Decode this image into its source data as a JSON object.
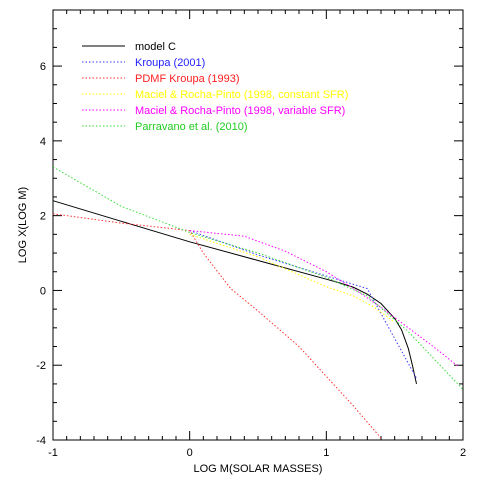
{
  "chart_data": {
    "type": "line",
    "xlabel": "LOG M(SOLAR MASSES)",
    "ylabel": "LOG X(LOG M)",
    "xlim": [
      -1,
      2
    ],
    "ylim": [
      -4,
      7.5
    ],
    "x_ticks": [
      -1,
      0,
      1,
      2
    ],
    "x_tick_labels": [
      "-1",
      "0",
      "1",
      "2"
    ],
    "y_ticks": [
      -4,
      -2,
      0,
      2,
      4,
      6
    ],
    "y_tick_labels": [
      "-4",
      "-2",
      "0",
      "2",
      "4",
      "6"
    ],
    "grid": false,
    "legend_position": "top-left",
    "series": [
      {
        "name": "model C",
        "color": "#000000",
        "dash": "solid",
        "label_color": "#000000",
        "x": [
          -1,
          -0.5,
          0,
          0.5,
          1,
          1.1,
          1.2,
          1.3,
          1.4,
          1.5,
          1.55,
          1.6,
          1.63,
          1.66
        ],
        "y": [
          2.4,
          1.85,
          1.3,
          0.8,
          0.3,
          0.2,
          0.08,
          -0.1,
          -0.35,
          -0.75,
          -1.05,
          -1.55,
          -2.0,
          -2.5
        ]
      },
      {
        "name": "Kroupa (2001)",
        "color": "#3a3aff",
        "dash": "dot",
        "label_color": "#2222ff",
        "x": [
          0,
          0.5,
          1.3,
          1.66
        ],
        "y": [
          1.6,
          0.95,
          0.05,
          -2.35
        ]
      },
      {
        "name": "PDMF Kroupa (1993)",
        "color": "#ff3030",
        "dash": "dot",
        "label_color": "#ff2020",
        "x": [
          -1,
          -0.5,
          0,
          0.1,
          0.3,
          0.5,
          0.8,
          1.0,
          1.2,
          1.4
        ],
        "y": [
          2.05,
          1.8,
          1.6,
          1.0,
          0.05,
          -0.55,
          -1.5,
          -2.3,
          -3.1,
          -3.95
        ]
      },
      {
        "name": "Maciel & Rocha-Pinto (1998, constant SFR)",
        "color": "#ffff00",
        "dash": "dot",
        "label_color": "#ffff00",
        "x": [
          0,
          0.5,
          1.0,
          1.2,
          1.35,
          1.5
        ],
        "y": [
          1.5,
          0.9,
          0.1,
          -0.15,
          -0.45,
          -0.85
        ]
      },
      {
        "name": "Maciel & Rocha-Pinto (1998, variable SFR)",
        "color": "#ff00ff",
        "dash": "dot",
        "label_color": "#ff00ff",
        "x": [
          0,
          0.4,
          0.7,
          1.0,
          1.2,
          1.4,
          1.6,
          1.8,
          1.97
        ],
        "y": [
          1.6,
          1.45,
          1.05,
          0.5,
          0.05,
          -0.45,
          -1.0,
          -1.55,
          -2.05
        ]
      },
      {
        "name": "Parravano et al. (2010)",
        "color": "#33dd33",
        "dash": "dot",
        "label_color": "#22cc22",
        "x": [
          -1,
          -0.5,
          0,
          0.5,
          1.0,
          1.3,
          1.6,
          2.0
        ],
        "y": [
          3.3,
          2.25,
          1.55,
          1.0,
          0.35,
          -0.15,
          -1.1,
          -2.65
        ]
      }
    ]
  }
}
